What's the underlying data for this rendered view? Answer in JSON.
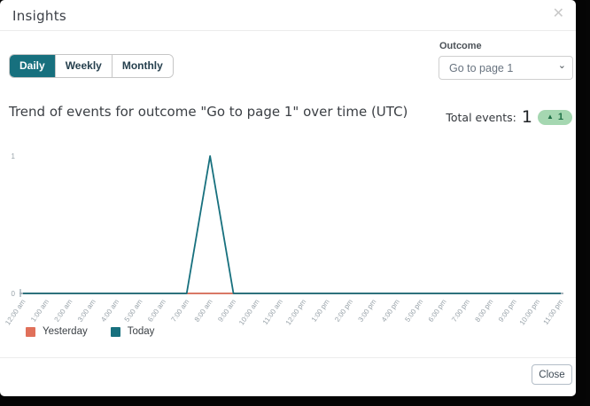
{
  "header": {
    "title": "Insights",
    "close_icon": "✕"
  },
  "tabs": {
    "selected": "Daily",
    "items": [
      {
        "label": "Daily"
      },
      {
        "label": "Weekly"
      },
      {
        "label": "Monthly"
      }
    ]
  },
  "outcome": {
    "label": "Outcome",
    "selected_option": "Go to page 1"
  },
  "summary": {
    "chart_title": "Trend of events for outcome \"Go to page 1\" over time (UTC)",
    "total_events_label": "Total events:",
    "total_events_value": "1",
    "delta": {
      "icon": "▲",
      "value": "1"
    }
  },
  "footer": {
    "close_label": "Close"
  },
  "colors": {
    "accent_teal": "#17707e",
    "yesterday_line": "#e0705a",
    "today_line": "#17707e",
    "badge_bg": "#a5d7b1",
    "badge_fg": "#1d6f45",
    "axis": "#a9b5bd",
    "tick_text": "#98a2a9",
    "backdrop": "#060606"
  },
  "chart_data": {
    "type": "line",
    "title": "Trend of events for outcome \"Go to page 1\" over time (UTC)",
    "xlabel": "",
    "ylabel": "",
    "ylim": [
      0,
      1
    ],
    "yticks": [
      0,
      1
    ],
    "grid": false,
    "legend_position": "bottom-left",
    "x": [
      "12:00 am",
      "1:00 am",
      "2:00 am",
      "3:00 am",
      "4:00 am",
      "5:00 am",
      "6:00 am",
      "7:00 am",
      "8:00 am",
      "9:00 am",
      "10:00 am",
      "11:00 am",
      "12:00 pm",
      "1:00 pm",
      "2:00 pm",
      "3:00 pm",
      "4:00 pm",
      "5:00 pm",
      "6:00 pm",
      "7:00 pm",
      "8:00 pm",
      "9:00 pm",
      "10:00 pm",
      "11:00 pm"
    ],
    "series": [
      {
        "name": "Yesterday",
        "color": "#e0705a",
        "values": [
          0,
          0,
          0,
          0,
          0,
          0,
          0,
          0,
          0,
          0,
          0,
          0,
          0,
          0,
          0,
          0,
          0,
          0,
          0,
          0,
          0,
          0,
          0,
          0
        ]
      },
      {
        "name": "Today",
        "color": "#17707e",
        "values": [
          0,
          0,
          0,
          0,
          0,
          0,
          0,
          0,
          1,
          0,
          0,
          0,
          0,
          0,
          0,
          0,
          0,
          0,
          0,
          0,
          0,
          0,
          0,
          0
        ]
      }
    ]
  }
}
